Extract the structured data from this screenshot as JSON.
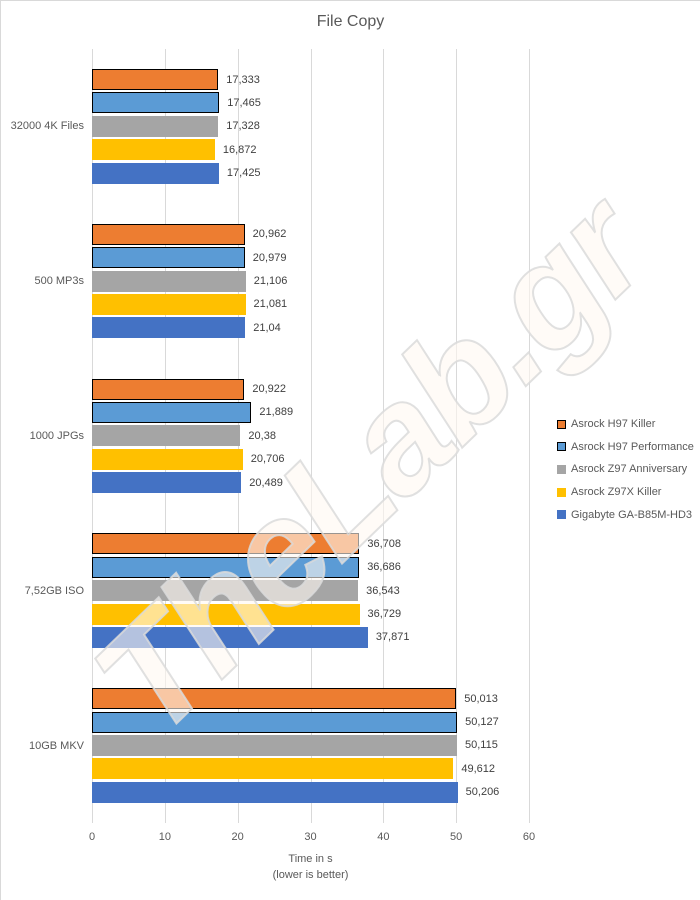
{
  "title": "File Copy",
  "watermark": "TheLab.gr",
  "axis": {
    "ticks": [
      "0",
      "10",
      "20",
      "30",
      "40",
      "50",
      "60"
    ],
    "max": 60,
    "label_line1": "Time in s",
    "label_line2": "(lower is better)"
  },
  "colors": {
    "grid": "#D9D9D9",
    "muted_text": "#595959",
    "value_label": "#404040"
  },
  "chart_data": {
    "type": "bar",
    "orientation": "horizontal",
    "title": "File Copy",
    "xlabel": "Time in s (lower is better)",
    "xlim": [
      0,
      60
    ],
    "grid": true,
    "legend_position": "right",
    "categories": [
      "32000 4K Files",
      "500 MP3s",
      "1000 JPGs",
      "7,52GB ISO",
      "10GB MKV"
    ],
    "series": [
      {
        "name": "Asrock H97 Killer",
        "color": "#ED7D31",
        "outlined": true,
        "values": [
          17.333,
          20.962,
          20.922,
          36.708,
          50.013
        ],
        "labels": [
          "17,333",
          "20,962",
          "20,922",
          "36,708",
          "50,013"
        ]
      },
      {
        "name": "Asrock H97 Performance",
        "color": "#5B9BD5",
        "outlined": true,
        "values": [
          17.465,
          20.979,
          21.889,
          36.686,
          50.127
        ],
        "labels": [
          "17,465",
          "20,979",
          "21,889",
          "36,686",
          "50,127"
        ]
      },
      {
        "name": "Asrock Z97 Anniversary",
        "color": "#A5A5A5",
        "outlined": false,
        "values": [
          17.328,
          21.106,
          20.38,
          36.543,
          50.115
        ],
        "labels": [
          "17,328",
          "21,106",
          "20,38",
          "36,543",
          "50,115"
        ]
      },
      {
        "name": "Asrock Z97X Killer",
        "color": "#FFC000",
        "outlined": false,
        "values": [
          16.872,
          21.081,
          20.706,
          36.729,
          49.612
        ],
        "labels": [
          "16,872",
          "21,081",
          "20,706",
          "36,729",
          "49,612"
        ]
      },
      {
        "name": "Gigabyte GA-B85M-HD3",
        "color": "#4472C4",
        "outlined": false,
        "values": [
          17.425,
          21.04,
          20.489,
          37.871,
          50.206
        ],
        "labels": [
          "17,425",
          "21,04",
          "20,489",
          "37,871",
          "50,206"
        ]
      }
    ]
  }
}
